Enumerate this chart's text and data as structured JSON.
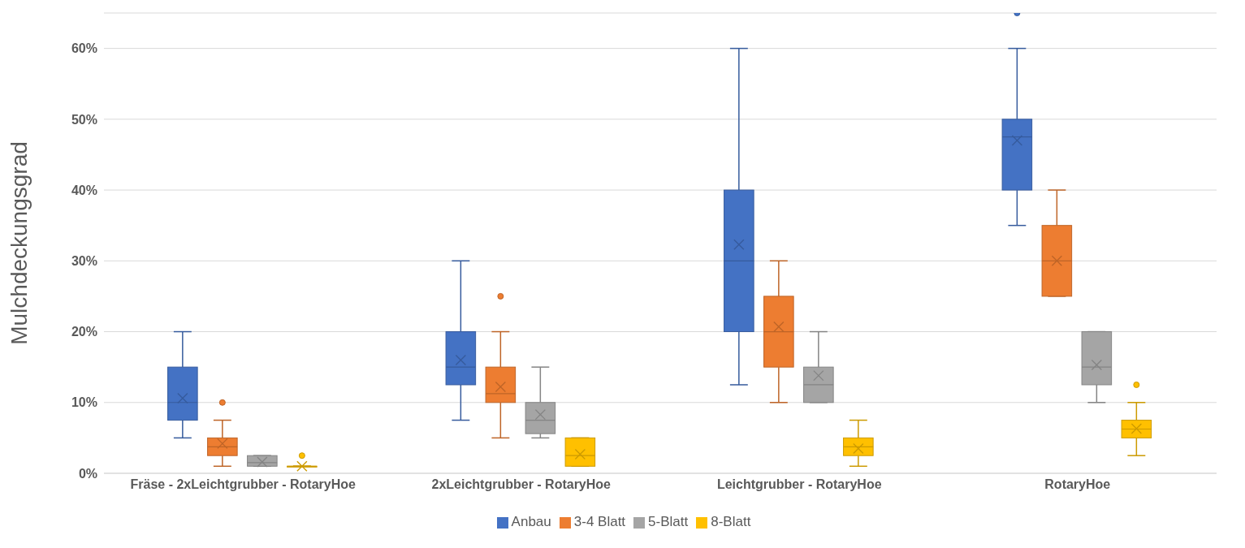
{
  "chart_data": {
    "type": "box",
    "ylabel": "Mulchdeckungsgrad",
    "categories": [
      "Fräse - 2xLeichtgrubber - RotaryHoe",
      "2xLeichtgrubber - RotaryHoe",
      "Leichtgrubber - RotaryHoe",
      "RotaryHoe"
    ],
    "ylim": [
      0,
      65
    ],
    "yticks": [
      {
        "value": 0,
        "label": "0%"
      },
      {
        "value": 10,
        "label": "10%"
      },
      {
        "value": 20,
        "label": "20%"
      },
      {
        "value": 30,
        "label": "30%"
      },
      {
        "value": 40,
        "label": "40%"
      },
      {
        "value": 50,
        "label": "50%"
      },
      {
        "value": 60,
        "label": "60%"
      }
    ],
    "grid": "y",
    "legend": "bottom",
    "series": [
      {
        "name": "Anbau",
        "color": "#4472c4",
        "boxes": [
          {
            "low": 5,
            "q1": 7.5,
            "median": 10,
            "q3": 15,
            "high": 20,
            "mean": 10.6
          },
          {
            "low": 7.5,
            "q1": 12.5,
            "median": 15,
            "q3": 20,
            "high": 30,
            "mean": 16
          },
          {
            "low": 12.5,
            "q1": 20,
            "median": 30,
            "q3": 40,
            "high": 60,
            "mean": 32.3
          },
          {
            "low": 35,
            "q1": 40,
            "median": 47.5,
            "q3": 50,
            "high": 60,
            "mean": 47,
            "outliers": [
              65
            ]
          }
        ]
      },
      {
        "name": "3-4 Blatt",
        "color": "#ed7d31",
        "boxes": [
          {
            "low": 1,
            "q1": 2.5,
            "median": 3.75,
            "q3": 5,
            "high": 7.5,
            "mean": 4.2,
            "outliers": [
              10
            ]
          },
          {
            "low": 5,
            "q1": 10,
            "median": 11.25,
            "q3": 15,
            "high": 20,
            "mean": 12.2,
            "outliers": [
              25
            ]
          },
          {
            "low": 10,
            "q1": 15,
            "median": 20,
            "q3": 25,
            "high": 30,
            "mean": 20.7
          },
          {
            "low": 25,
            "q1": 25,
            "median": 30,
            "q3": 35,
            "high": 40,
            "mean": 30
          }
        ]
      },
      {
        "name": "5-Blatt",
        "color": "#a5a5a5",
        "boxes": [
          {
            "low": 1,
            "q1": 1,
            "median": 1.5,
            "q3": 2.5,
            "high": 2.5,
            "mean": 1.6
          },
          {
            "low": 5,
            "q1": 5.6,
            "median": 7.5,
            "q3": 10,
            "high": 15,
            "mean": 8.3
          },
          {
            "low": 10,
            "q1": 10,
            "median": 12.5,
            "q3": 15,
            "high": 20,
            "mean": 13.8
          },
          {
            "low": 10,
            "q1": 12.5,
            "median": 15,
            "q3": 20,
            "high": 20,
            "mean": 15.3
          }
        ]
      },
      {
        "name": "8-Blatt",
        "color": "#ffc000",
        "boxes": [
          {
            "low": 1,
            "q1": 1,
            "median": 1,
            "q3": 1,
            "high": 1,
            "mean": 1,
            "outliers": [
              2.5
            ]
          },
          {
            "low": 1,
            "q1": 1,
            "median": 2.5,
            "q3": 5,
            "high": 5,
            "mean": 2.7
          },
          {
            "low": 1,
            "q1": 2.5,
            "median": 3.75,
            "q3": 5,
            "high": 7.5,
            "mean": 3.5
          },
          {
            "low": 2.5,
            "q1": 5,
            "median": 6.25,
            "q3": 7.5,
            "high": 10,
            "mean": 6.3,
            "outliers": [
              12.5
            ]
          }
        ]
      }
    ]
  }
}
